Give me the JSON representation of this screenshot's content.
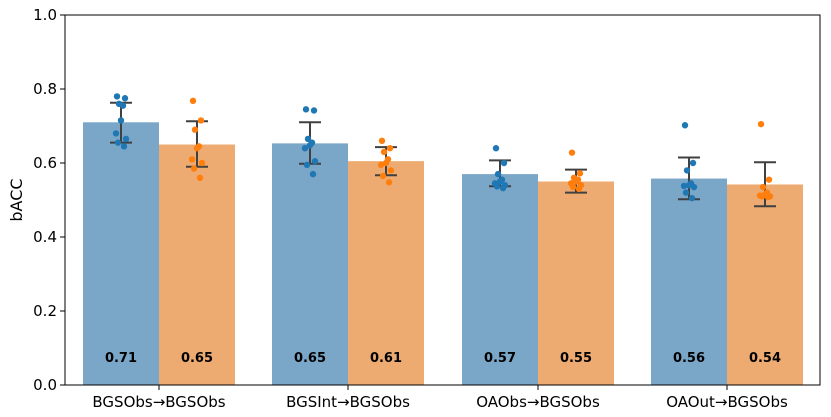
{
  "chart_data": {
    "type": "bar",
    "title": "",
    "xlabel": "",
    "ylabel": "bACC",
    "ylim": [
      0.0,
      1.0
    ],
    "yticks": [
      "0.0",
      "0.2",
      "0.4",
      "0.6",
      "0.8",
      "1.0"
    ],
    "categories": [
      "BGSObs→BGSObs",
      "BGSInt→BGSObs",
      "OAObs→BGSObs",
      "OAOut→BGSObs"
    ],
    "series": [
      {
        "color": "#7aa6c8",
        "dot_color": "#1f77b4",
        "values": [
          0.71,
          0.653,
          0.57,
          0.558
        ],
        "value_labels": [
          "0.71",
          "0.65",
          "0.57",
          "0.56"
        ],
        "errors": [
          [
            0.655,
            0.763
          ],
          [
            0.598,
            0.71
          ],
          [
            0.537,
            0.607
          ],
          [
            0.502,
            0.615
          ]
        ],
        "points": [
          [
            0.78,
            0.775,
            0.76,
            0.755,
            0.715,
            0.68,
            0.665,
            0.655,
            0.645
          ],
          [
            0.745,
            0.742,
            0.665,
            0.655,
            0.648,
            0.64,
            0.605,
            0.595,
            0.57
          ],
          [
            0.64,
            0.6,
            0.57,
            0.555,
            0.55,
            0.545,
            0.54,
            0.537,
            0.532
          ],
          [
            0.702,
            0.6,
            0.58,
            0.545,
            0.54,
            0.538,
            0.535,
            0.52,
            0.505
          ]
        ]
      },
      {
        "color": "#eeab71",
        "dot_color": "#ff7f0e",
        "values": [
          0.65,
          0.605,
          0.55,
          0.542
        ],
        "value_labels": [
          "0.65",
          "0.61",
          "0.55",
          "0.54"
        ],
        "errors": [
          [
            0.59,
            0.713
          ],
          [
            0.567,
            0.643
          ],
          [
            0.52,
            0.582
          ],
          [
            0.483,
            0.602
          ]
        ],
        "points": [
          [
            0.768,
            0.715,
            0.69,
            0.645,
            0.64,
            0.61,
            0.6,
            0.585,
            0.56
          ],
          [
            0.66,
            0.64,
            0.63,
            0.61,
            0.6,
            0.595,
            0.58,
            0.565,
            0.548
          ],
          [
            0.628,
            0.572,
            0.56,
            0.555,
            0.55,
            0.545,
            0.54,
            0.535,
            0.53
          ],
          [
            0.705,
            0.555,
            0.535,
            0.52,
            0.515,
            0.512,
            0.51,
            0.51,
            0.508
          ]
        ]
      }
    ],
    "grid": false,
    "legend": "none"
  }
}
